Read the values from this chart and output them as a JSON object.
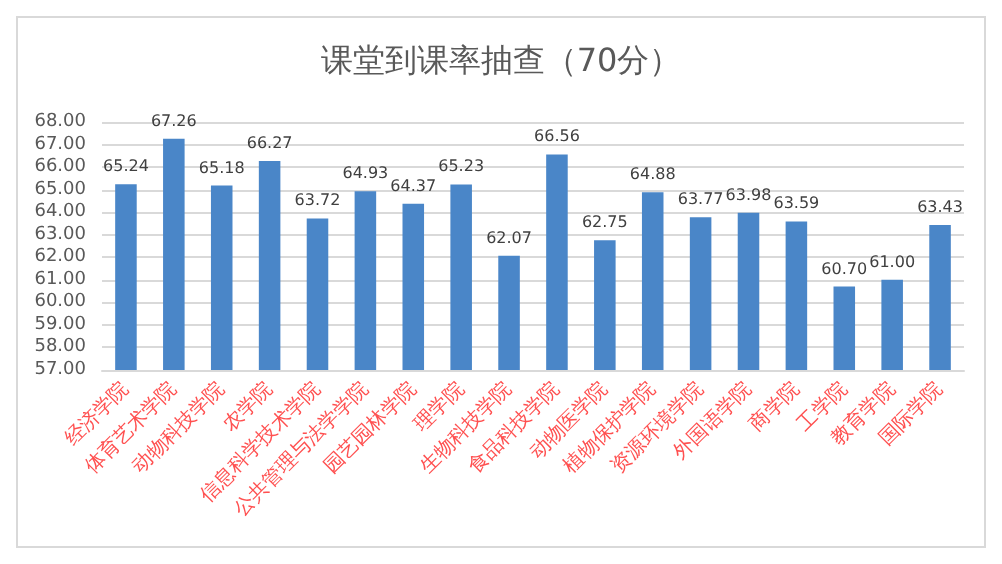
{
  "chart_data": {
    "type": "bar",
    "title": "课堂到课率抽查（70分）",
    "categories": [
      "经济学院",
      "体育艺术学院",
      "动物科技学院",
      "农学院",
      "信息科学技术学院",
      "公共管理与法学学院",
      "园艺园林学院",
      "理学院",
      "生物科技学院",
      "食品科技学院",
      "动物医学院",
      "植物保护学院",
      "资源环境学院",
      "外国语学院",
      "商学院",
      "工学院",
      "教育学院",
      "国际学院"
    ],
    "values": [
      65.24,
      67.26,
      65.18,
      66.27,
      63.72,
      64.93,
      64.37,
      65.23,
      62.07,
      66.56,
      62.75,
      64.88,
      63.77,
      63.98,
      63.59,
      60.7,
      61.0,
      63.43
    ],
    "value_labels": [
      "65.24",
      "67.26",
      "65.18",
      "66.27",
      "63.72",
      "64.93",
      "64.37",
      "65.23",
      "62.07",
      "66.56",
      "62.75",
      "64.88",
      "63.77",
      "63.98",
      "63.59",
      "60.70",
      "61.00",
      "63.43"
    ],
    "color": "#4a86c8",
    "ylim": [
      57,
      68
    ],
    "yticks": [
      {
        "value": 57,
        "label": "57.00"
      },
      {
        "value": 58,
        "label": "58.00"
      },
      {
        "value": 59,
        "label": "59.00"
      },
      {
        "value": 60,
        "label": "60.00"
      },
      {
        "value": 61,
        "label": "61.00"
      },
      {
        "value": 62,
        "label": "62.00"
      },
      {
        "value": 63,
        "label": "63.00"
      },
      {
        "value": 64,
        "label": "64.00"
      },
      {
        "value": 65,
        "label": "65.00"
      },
      {
        "value": 66,
        "label": "66.00"
      },
      {
        "value": 67,
        "label": "67.00"
      },
      {
        "value": 68,
        "label": "68.00"
      }
    ],
    "grid": true
  }
}
